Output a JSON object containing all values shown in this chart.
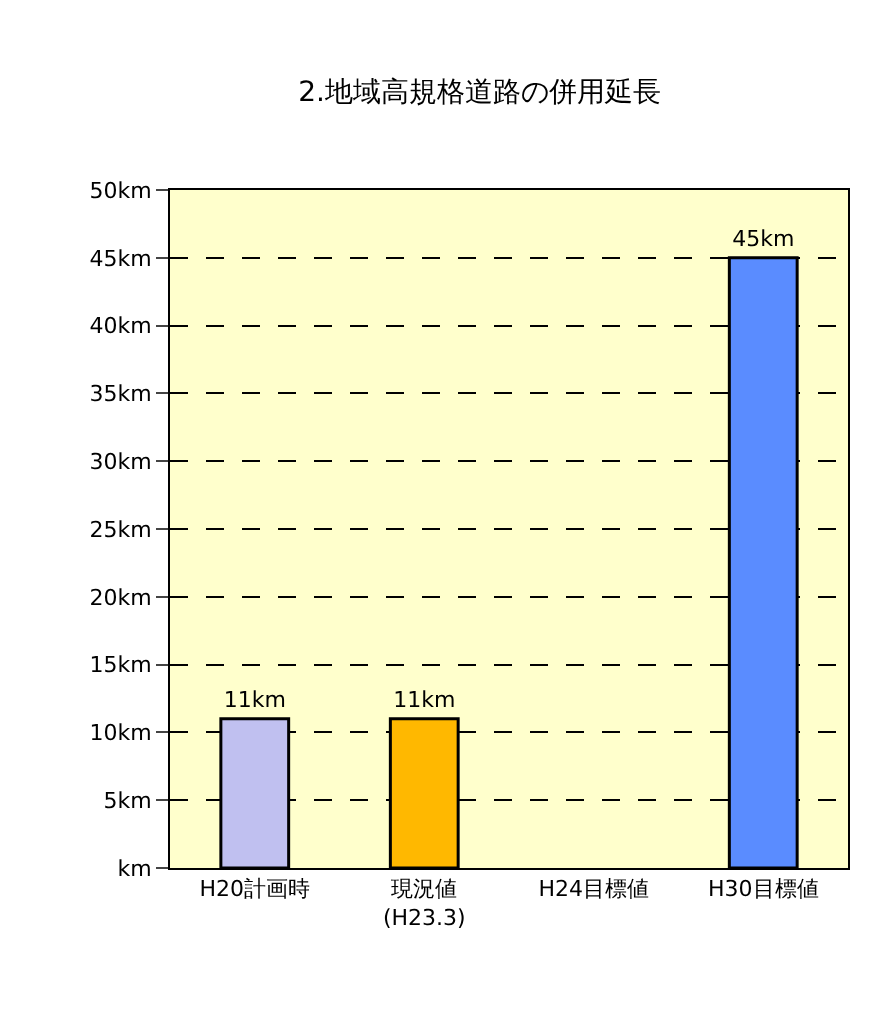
{
  "chart_data": {
    "type": "bar",
    "title": "2.地域高規格道路の併用延長",
    "categories": [
      "H20計画時",
      "現況値\n(H23.3)",
      "H24目標値",
      "H30目標値"
    ],
    "values": [
      11,
      11,
      null,
      45
    ],
    "colors": [
      "#c0c0f0",
      "#ffb800",
      null,
      "#5a8cff"
    ],
    "value_labels": [
      "11km",
      "11km",
      null,
      "45km"
    ],
    "ylim": [
      0,
      50
    ],
    "yticks": [
      {
        "value": 0,
        "label": "km"
      },
      {
        "value": 5,
        "label": "5km"
      },
      {
        "value": 10,
        "label": "10km"
      },
      {
        "value": 15,
        "label": "15km"
      },
      {
        "value": 20,
        "label": "20km"
      },
      {
        "value": 25,
        "label": "25km"
      },
      {
        "value": 30,
        "label": "30km"
      },
      {
        "value": 35,
        "label": "35km"
      },
      {
        "value": 40,
        "label": "40km"
      },
      {
        "value": 45,
        "label": "45km"
      },
      {
        "value": 50,
        "label": "50km"
      }
    ],
    "grid": "y",
    "line_style": "dashed",
    "legend": false
  }
}
